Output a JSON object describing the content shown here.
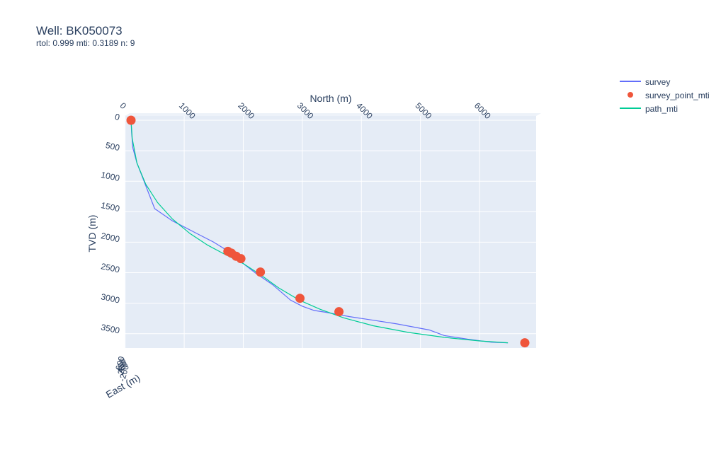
{
  "title": "Well: BK050073",
  "subtitle": "rtol: 0.999 mti: 0.3189 n: 9",
  "legend": [
    {
      "name": "survey",
      "color": "#636efa",
      "kind": "line"
    },
    {
      "name": "survey_point_mti",
      "color": "#ef553b",
      "kind": "marker"
    },
    {
      "name": "path_mti",
      "color": "#00cc96",
      "kind": "line"
    }
  ],
  "chart_data": {
    "type": "line",
    "xlabel": "North (m)",
    "ylabel": "TVD (m)",
    "zlabel": "East (m)",
    "xlim": [
      0,
      6800
    ],
    "ylim": [
      3850,
      -100
    ],
    "x_ticks": [
      0,
      1000,
      2000,
      3000,
      4000,
      5000,
      6000
    ],
    "y_ticks": [
      0,
      500,
      1000,
      1500,
      2000,
      2500,
      3000,
      3500
    ],
    "east_ticks": [
      "600",
      "400",
      "200",
      "0",
      "-200"
    ],
    "grid": true,
    "legend_position": "top-right",
    "series": [
      {
        "name": "survey",
        "color": "#636efa",
        "x": [
          100,
          110,
          130,
          200,
          300,
          400,
          500,
          800,
          1200,
          1500,
          1700,
          1800,
          2000,
          2200,
          2500,
          2800,
          3000,
          3200,
          3400,
          3800,
          4200,
          4600,
          5150,
          5400,
          5800,
          6200,
          6480
        ],
        "y": [
          0,
          200,
          450,
          700,
          950,
          1200,
          1450,
          1650,
          1850,
          2000,
          2120,
          2250,
          2350,
          2500,
          2700,
          2950,
          3050,
          3120,
          3150,
          3220,
          3280,
          3340,
          3440,
          3530,
          3590,
          3640,
          3650
        ]
      },
      {
        "name": "path_mti",
        "color": "#00cc96",
        "x": [
          100,
          120,
          200,
          350,
          550,
          800,
          1100,
          1400,
          1650,
          2000,
          2300,
          2600,
          2950,
          3300,
          3700,
          4200,
          4800,
          5400,
          6000,
          6480
        ],
        "y": [
          0,
          300,
          700,
          1050,
          1350,
          1620,
          1860,
          2050,
          2180,
          2350,
          2540,
          2750,
          2950,
          3100,
          3240,
          3370,
          3480,
          3560,
          3620,
          3650
        ]
      },
      {
        "name": "survey_point_mti",
        "color": "#ef553b",
        "x": [
          100,
          1740,
          1800,
          1880,
          1960,
          2290,
          2960,
          3620,
          6780
        ],
        "y": [
          0,
          2150,
          2180,
          2230,
          2270,
          2490,
          2920,
          3140,
          3650
        ]
      }
    ]
  }
}
